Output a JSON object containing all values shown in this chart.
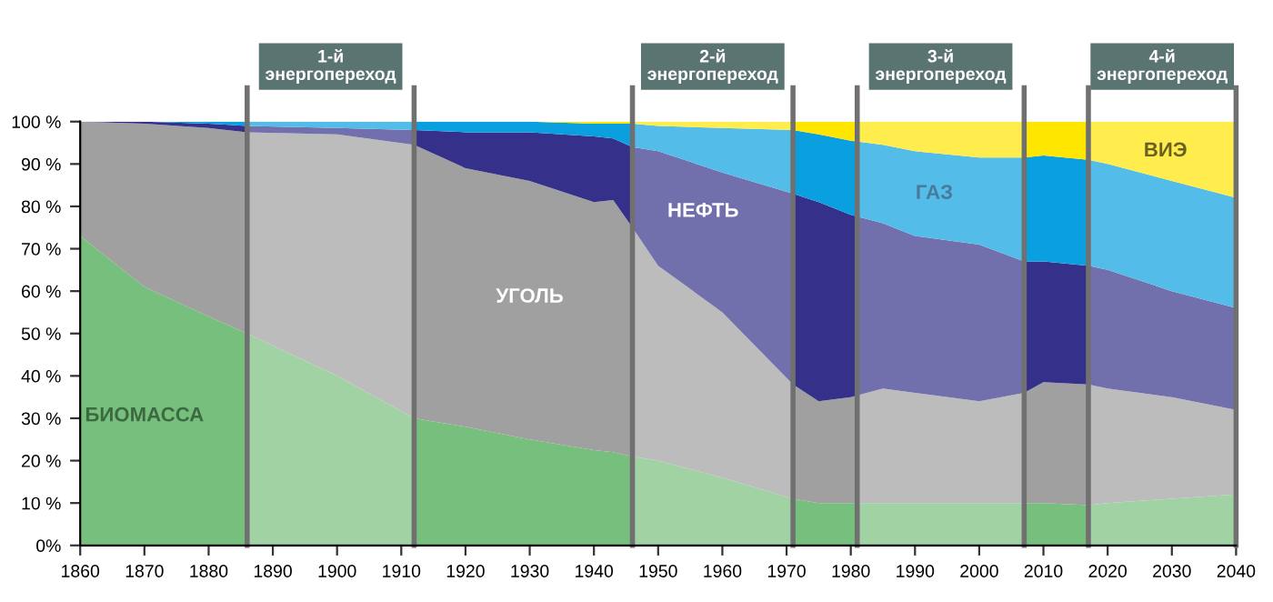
{
  "chart_data": {
    "type": "area",
    "stacked": true,
    "x": [
      1860,
      1870,
      1880,
      1886,
      1900,
      1912,
      1920,
      1930,
      1940,
      1943,
      1946,
      1950,
      1960,
      1971,
      1975,
      1980,
      1985,
      1990,
      2000,
      2007,
      2010,
      2017,
      2020,
      2030,
      2040
    ],
    "xlim": [
      1860,
      2040
    ],
    "xticks": [
      1860,
      1870,
      1880,
      1890,
      1900,
      1910,
      1920,
      1930,
      1940,
      1950,
      1960,
      1970,
      1980,
      1990,
      2000,
      2010,
      2020,
      2030,
      2040
    ],
    "ylim": [
      0,
      100
    ],
    "yticks": [
      {
        "value": 0,
        "label": "0%"
      },
      {
        "value": 10,
        "label": "10 %"
      },
      {
        "value": 20,
        "label": "20 %"
      },
      {
        "value": 30,
        "label": "30 %"
      },
      {
        "value": 40,
        "label": "40 %"
      },
      {
        "value": 50,
        "label": "50 %"
      },
      {
        "value": 60,
        "label": "60 %"
      },
      {
        "value": 70,
        "label": "70 %"
      },
      {
        "value": 80,
        "label": "80 %"
      },
      {
        "value": 90,
        "label": "90 %"
      },
      {
        "value": 100,
        "label": "100 %"
      }
    ],
    "grid": false,
    "legend": false,
    "series": [
      {
        "name": "БИОМАССА",
        "color": "#77bf7d",
        "values": [
          73,
          61,
          54,
          50,
          40,
          30,
          28,
          25,
          22.5,
          22,
          21,
          20,
          16,
          11,
          10,
          10,
          10,
          10,
          10,
          10,
          10,
          9.5,
          10,
          11,
          12
        ]
      },
      {
        "name": "УГОЛЬ",
        "color": "#a0a0a0",
        "values": [
          27,
          38.5,
          44.5,
          47.5,
          57,
          64.5,
          61,
          61,
          58.5,
          59.5,
          54,
          46,
          39,
          27,
          24,
          25,
          27,
          26,
          24,
          26,
          28.5,
          28.5,
          27,
          24,
          20
        ]
      },
      {
        "name": "НЕФТЬ",
        "color": "#35318a",
        "values": [
          0,
          0.5,
          1,
          1.5,
          1.5,
          3.5,
          8.5,
          11.5,
          15.5,
          14.5,
          19,
          27,
          33,
          45,
          47,
          43,
          39,
          37,
          37,
          31,
          28.5,
          28,
          28,
          25,
          24
        ]
      },
      {
        "name": "ГАЗ",
        "color": "#0aa0e0",
        "values": [
          0,
          0,
          0.5,
          1,
          1.5,
          2,
          2.5,
          2.5,
          3,
          3.5,
          5.5,
          6,
          10.5,
          15,
          16,
          17.5,
          18.5,
          20,
          20.5,
          24.5,
          25,
          25,
          25,
          26,
          26
        ]
      },
      {
        "name": "ВИЭ",
        "color": "#ffe600",
        "values": [
          0,
          0,
          0,
          0,
          0,
          0,
          0,
          0,
          0.5,
          0.5,
          0.5,
          1,
          1.5,
          2,
          3,
          4.5,
          5.5,
          7,
          8.5,
          8.5,
          8,
          9,
          10,
          14,
          18
        ]
      }
    ],
    "bands": [
      {
        "axis": "x",
        "from": 1886,
        "to": 1912,
        "label": "1-й\nэнергопереход",
        "color": "#ffffff"
      },
      {
        "axis": "x",
        "from": 1946,
        "to": 1971,
        "label": "2-й\nэнергопереход",
        "color": "#ffffff"
      },
      {
        "axis": "x",
        "from": 1981,
        "to": 2007,
        "label": "3-й\nэнергопереход",
        "color": "#ffffff"
      },
      {
        "axis": "x",
        "from": 2017,
        "to": 2040,
        "label": "4-й\nэнергопереход",
        "color": "#ffffff"
      }
    ]
  }
}
